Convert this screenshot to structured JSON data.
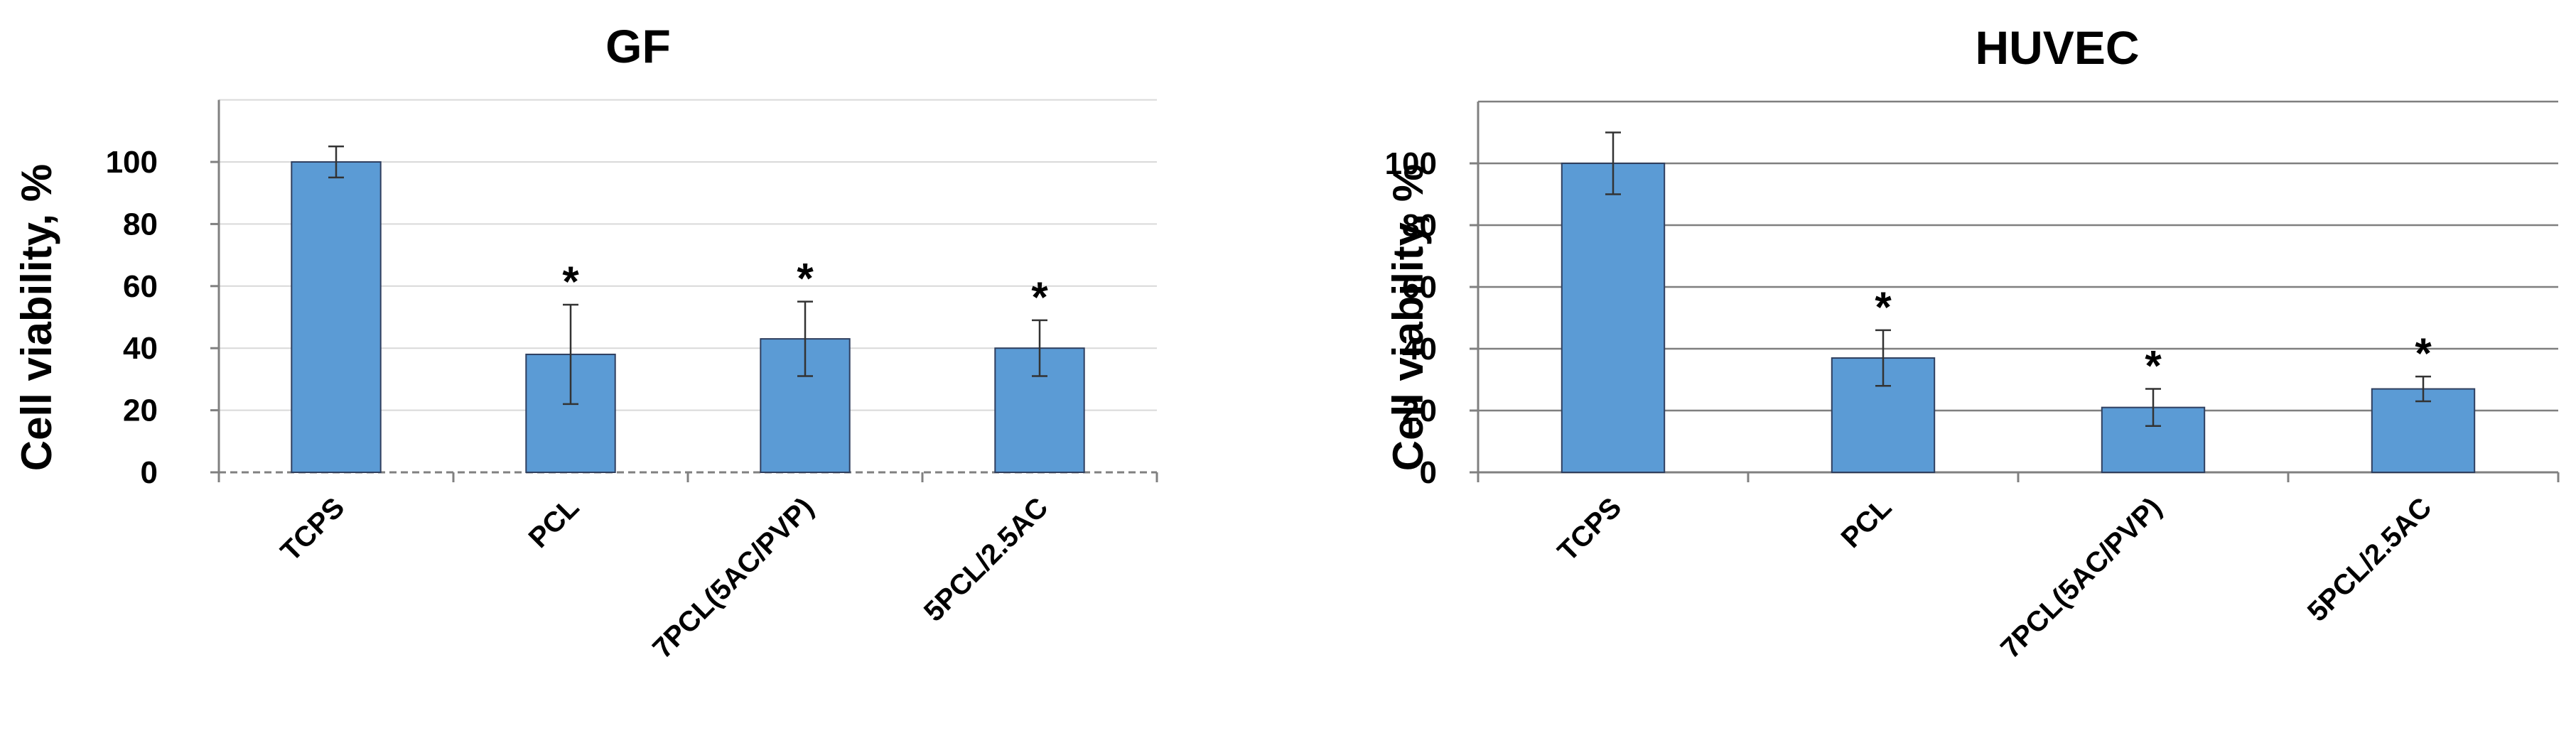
{
  "colors": {
    "bar_fill": "#5b9bd5",
    "bar_stroke": "#2f3f5f",
    "axis": "#808080",
    "error_bar": "#333333"
  },
  "chart_data": [
    {
      "type": "bar",
      "title": "GF",
      "xlabel": "",
      "ylabel": "Cell viability, %",
      "categories": [
        "TCPS",
        "PCL",
        "7PCL(5AC/PVP)",
        "5PCL/2.5AC"
      ],
      "values": [
        100,
        38,
        43,
        40
      ],
      "errors": [
        5,
        16,
        12,
        9
      ],
      "significance": [
        "",
        "*",
        "*",
        "*"
      ],
      "yticks": [
        "0",
        "20",
        "40",
        "60",
        "80",
        "100"
      ],
      "ylim": [
        0,
        120
      ],
      "grid": true,
      "grid_color": "#d9d9d9",
      "legend": "none"
    },
    {
      "type": "bar",
      "title": "HUVEC",
      "xlabel": "",
      "ylabel": "Cell viability, %",
      "categories": [
        "TCPS",
        "PCL",
        "7PCL(5AC/PVP)",
        "5PCL/2.5AC"
      ],
      "values": [
        100,
        37,
        21,
        27
      ],
      "errors": [
        10,
        9,
        6,
        4
      ],
      "significance": [
        "",
        "*",
        "*",
        "*"
      ],
      "yticks": [
        "0",
        "20",
        "40",
        "60",
        "80",
        "100"
      ],
      "ylim": [
        0,
        120
      ],
      "grid": true,
      "grid_color": "#7f7f7f",
      "legend": "none"
    }
  ]
}
